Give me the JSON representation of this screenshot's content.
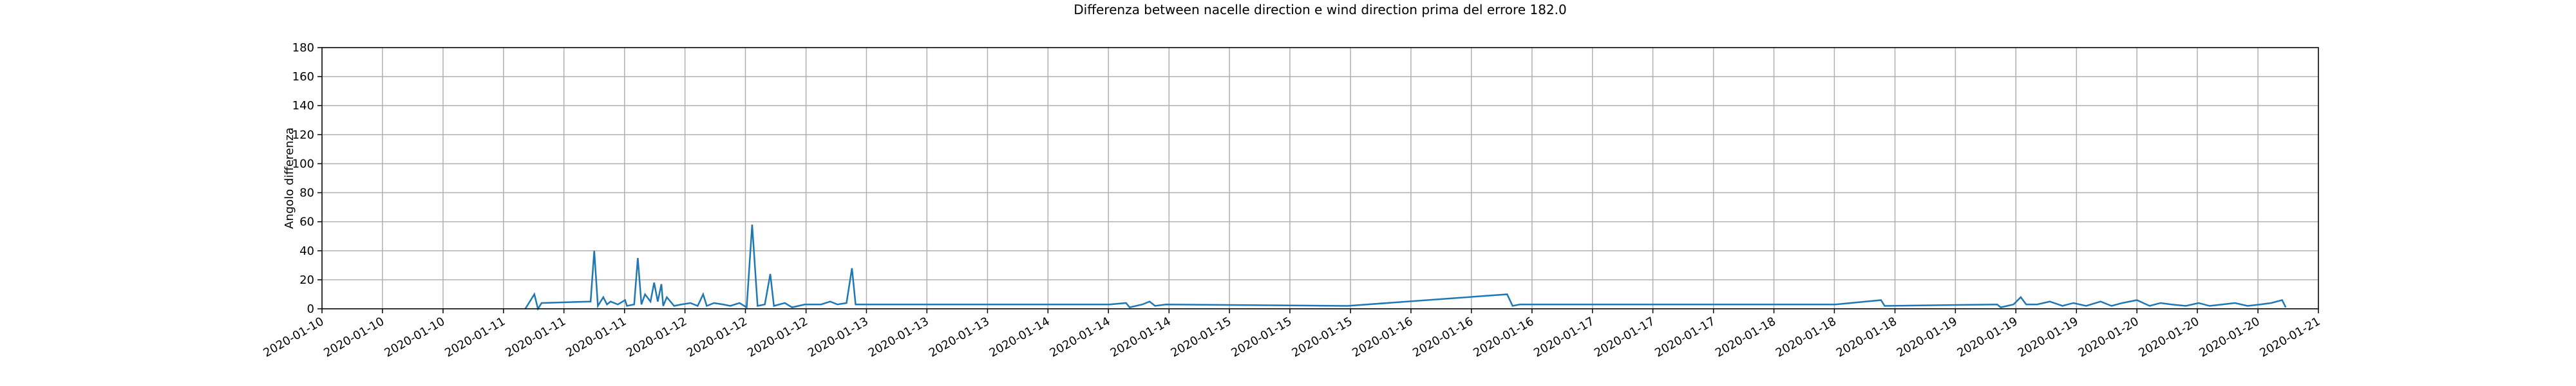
{
  "chart_data": {
    "type": "line",
    "title": "Differenza between nacelle direction e wind direction prima del errore 182.0",
    "y_label": "Angolo differenza",
    "x": [
      11.12,
      11.17,
      11.19,
      11.21,
      11.48,
      11.5,
      11.52,
      11.55,
      11.57,
      11.59,
      11.63,
      11.67,
      11.68,
      11.72,
      11.74,
      11.76,
      11.78,
      11.81,
      11.83,
      11.85,
      11.87,
      11.88,
      11.9,
      11.94,
      11.98,
      12.03,
      12.07,
      12.1,
      12.12,
      12.16,
      12.21,
      12.25,
      12.3,
      12.34,
      12.37,
      12.4,
      12.44,
      12.47,
      12.49,
      12.55,
      12.59,
      12.66,
      12.75,
      12.8,
      12.84,
      12.89,
      12.92,
      12.94,
      14.34,
      14.43,
      14.45,
      14.52,
      14.56,
      14.59,
      14.65,
      15.65,
      16.53,
      16.56,
      16.6,
      18.34,
      18.59,
      18.61,
      19.23,
      19.25,
      19.32,
      19.36,
      19.39,
      19.45,
      19.52,
      19.59,
      19.65,
      19.72,
      19.8,
      19.86,
      19.92,
      20.0,
      20.07,
      20.13,
      20.19,
      20.27,
      20.34,
      20.4,
      20.47,
      20.54,
      20.61,
      20.68,
      20.74,
      20.8,
      20.82
    ],
    "series": [
      {
        "name": "Angolo differenza",
        "color": "#1f77b4",
        "values": [
          0,
          10,
          0,
          4,
          5,
          40,
          2,
          8,
          3,
          5,
          3,
          6,
          2,
          3,
          35,
          3,
          10,
          5,
          18,
          5,
          17,
          2,
          8,
          2,
          3,
          4,
          2,
          10,
          2,
          4,
          3,
          2,
          4,
          1,
          58,
          2,
          3,
          24,
          2,
          4,
          1,
          3,
          3,
          5,
          3,
          4,
          28,
          3,
          3,
          4,
          1,
          3,
          5,
          2,
          3,
          2,
          10,
          2,
          3,
          3,
          6,
          2,
          3,
          1,
          3,
          8,
          3,
          3,
          5,
          2,
          4,
          2,
          5,
          2,
          4,
          6,
          2,
          4,
          3,
          2,
          4,
          2,
          3,
          4,
          2,
          3,
          4,
          6,
          1
        ]
      }
    ],
    "xlim": [
      10,
      21
    ],
    "xticks": [
      {
        "value": 10,
        "label": "2020-01-10"
      },
      {
        "value": 10.333,
        "label": "2020-01-10"
      },
      {
        "value": 10.667,
        "label": "2020-01-10"
      },
      {
        "value": 11,
        "label": "2020-01-11"
      },
      {
        "value": 11.333,
        "label": "2020-01-11"
      },
      {
        "value": 11.667,
        "label": "2020-01-11"
      },
      {
        "value": 12,
        "label": "2020-01-12"
      },
      {
        "value": 12.333,
        "label": "2020-01-12"
      },
      {
        "value": 12.667,
        "label": "2020-01-12"
      },
      {
        "value": 13,
        "label": "2020-01-13"
      },
      {
        "value": 13.333,
        "label": "2020-01-13"
      },
      {
        "value": 13.667,
        "label": "2020-01-13"
      },
      {
        "value": 14,
        "label": "2020-01-14"
      },
      {
        "value": 14.333,
        "label": "2020-01-14"
      },
      {
        "value": 14.667,
        "label": "2020-01-14"
      },
      {
        "value": 15,
        "label": "2020-01-15"
      },
      {
        "value": 15.333,
        "label": "2020-01-15"
      },
      {
        "value": 15.667,
        "label": "2020-01-15"
      },
      {
        "value": 16,
        "label": "2020-01-16"
      },
      {
        "value": 16.333,
        "label": "2020-01-16"
      },
      {
        "value": 16.667,
        "label": "2020-01-16"
      },
      {
        "value": 17,
        "label": "2020-01-17"
      },
      {
        "value": 17.333,
        "label": "2020-01-17"
      },
      {
        "value": 17.667,
        "label": "2020-01-17"
      },
      {
        "value": 18,
        "label": "2020-01-18"
      },
      {
        "value": 18.333,
        "label": "2020-01-18"
      },
      {
        "value": 18.667,
        "label": "2020-01-18"
      },
      {
        "value": 19,
        "label": "2020-01-19"
      },
      {
        "value": 19.333,
        "label": "2020-01-19"
      },
      {
        "value": 19.667,
        "label": "2020-01-19"
      },
      {
        "value": 20,
        "label": "2020-01-20"
      },
      {
        "value": 20.333,
        "label": "2020-01-20"
      },
      {
        "value": 20.667,
        "label": "2020-01-20"
      },
      {
        "value": 21,
        "label": "2020-01-21"
      }
    ],
    "ylim": [
      0,
      180
    ],
    "yticks": [
      0,
      20,
      40,
      60,
      80,
      100,
      120,
      140,
      160,
      180
    ],
    "grid": true
  }
}
